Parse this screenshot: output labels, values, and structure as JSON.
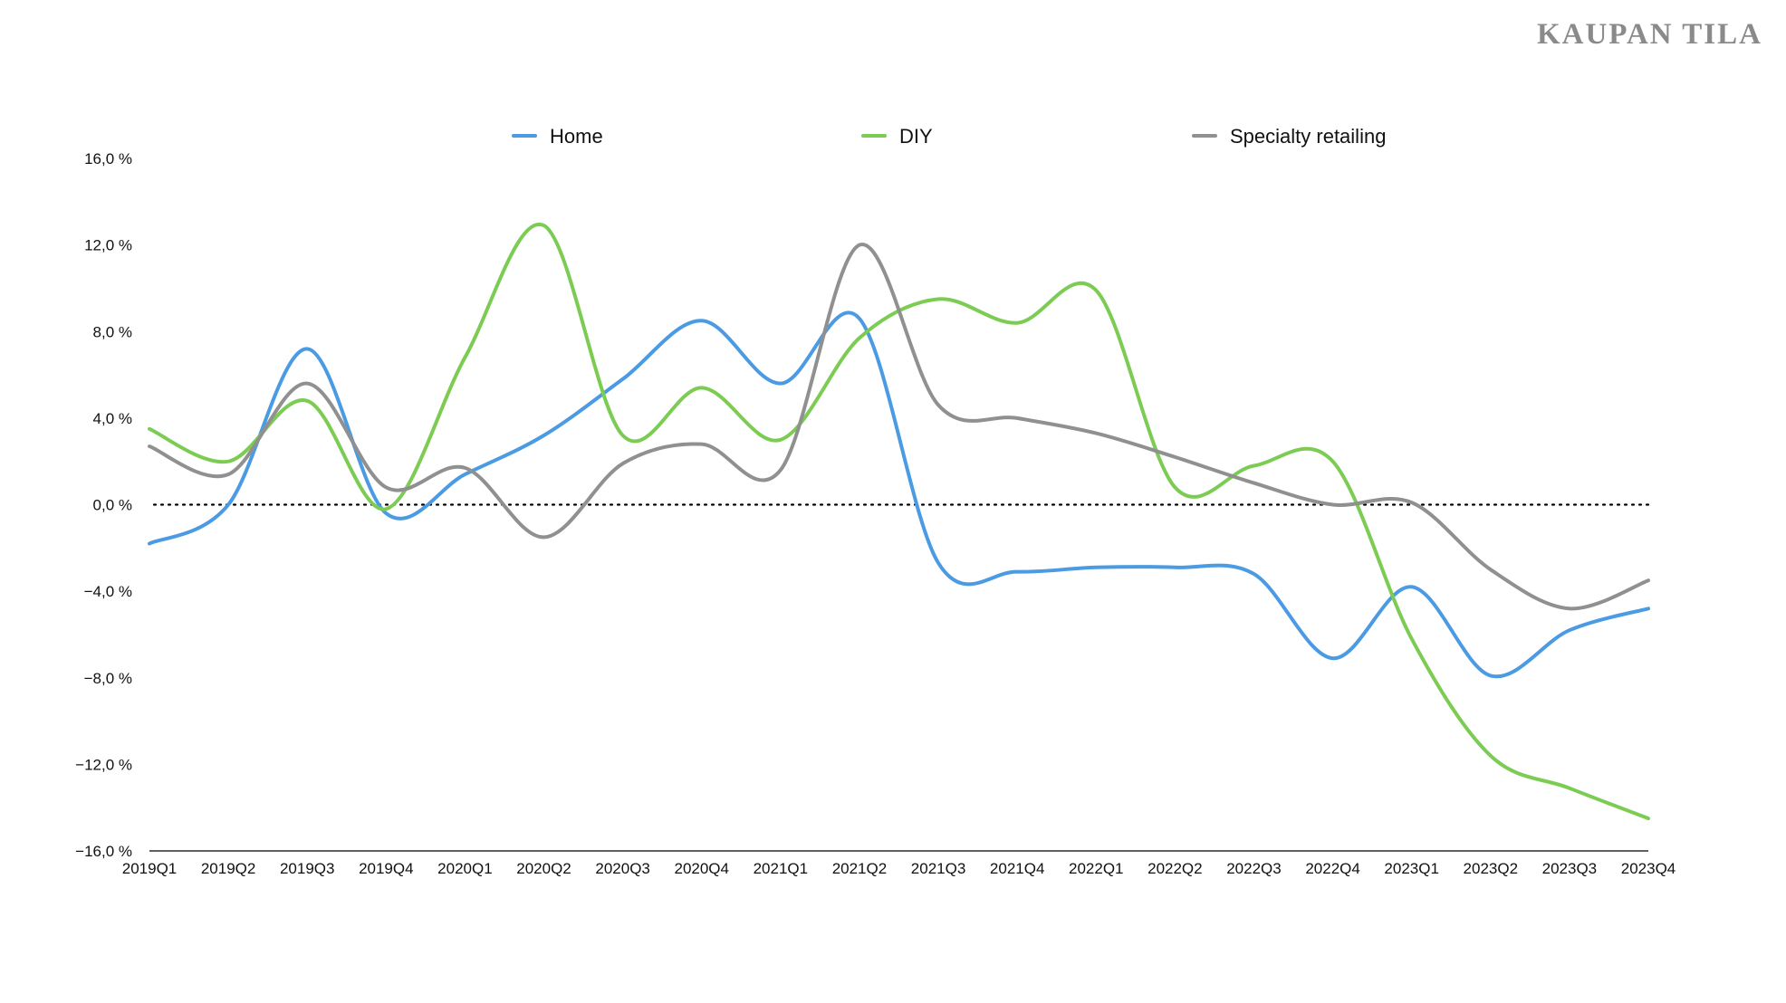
{
  "brand": "KAUPAN TILA",
  "chart_data": {
    "type": "line",
    "title": "",
    "xlabel": "",
    "ylabel": "",
    "ylim": [
      -16,
      16
    ],
    "yticks": [
      16,
      12,
      8,
      4,
      0,
      -4,
      -8,
      -12,
      -16
    ],
    "ytick_labels": [
      "16,0 %",
      "12,0 %",
      "8,0 %",
      "4,0 %",
      "0,0 %",
      "−4,0 %",
      "−8,0 %",
      "−12,0 %",
      "−16,0 %"
    ],
    "zero_line": "dotted",
    "legend": "top",
    "categories": [
      "2019Q1",
      "2019Q2",
      "2019Q3",
      "2019Q4",
      "2020Q1",
      "2020Q2",
      "2020Q3",
      "2020Q4",
      "2021Q1",
      "2021Q2",
      "2021Q3",
      "2021Q4",
      "2022Q1",
      "2022Q2",
      "2022Q3",
      "2022Q4",
      "2023Q1",
      "2023Q2",
      "2023Q3",
      "2023Q4"
    ],
    "series": [
      {
        "name": "Home",
        "color": "#4a9be3",
        "values": [
          -1.8,
          0.0,
          7.2,
          -0.4,
          1.4,
          3.2,
          5.8,
          8.5,
          5.6,
          8.6,
          -2.7,
          -3.1,
          -2.9,
          -2.9,
          -3.2,
          -7.1,
          -3.8,
          -7.9,
          -5.8,
          -4.8
        ]
      },
      {
        "name": "DIY",
        "color": "#7ccc54",
        "values": [
          3.5,
          2.0,
          4.8,
          -0.2,
          6.8,
          12.9,
          3.2,
          5.4,
          3.0,
          7.7,
          9.5,
          8.4,
          9.9,
          0.8,
          1.8,
          2.0,
          -6.2,
          -11.6,
          -13.1,
          -14.5
        ]
      },
      {
        "name": "Specialty retailing",
        "color": "#909090",
        "values": [
          2.7,
          1.4,
          5.6,
          0.8,
          1.7,
          -1.5,
          1.9,
          2.8,
          1.6,
          12.0,
          4.6,
          4.0,
          3.3,
          2.2,
          1.0,
          0.0,
          0.1,
          -3.0,
          -4.8,
          -3.5
        ]
      }
    ]
  }
}
